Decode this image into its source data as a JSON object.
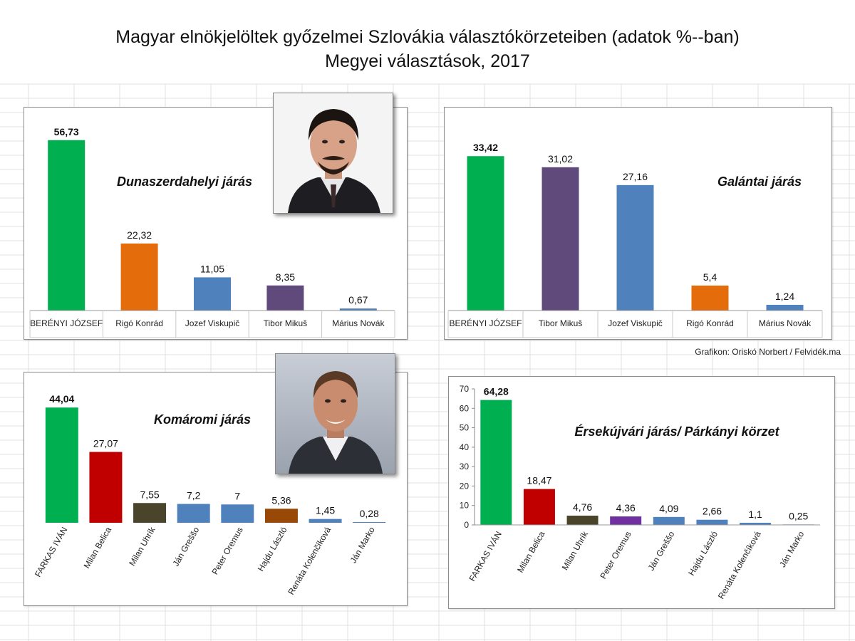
{
  "title": "Magyar elnökjelöltek győzelmei Szlovákia választókörzeteiben (adatok %--ban)",
  "subtitle": "Megyei választások, 2017",
  "credit": "Grafikon: Oriskó Norbert / Felvidék.ma",
  "chart_data": [
    {
      "type": "bar",
      "title": "Dunaszerdahelyi járás",
      "categories": [
        "BERÉNYI JÓZSEF",
        "Rigó Konrád",
        "Jozef Viskupič",
        "Tibor Mikuš",
        "Márius Novák"
      ],
      "values": [
        56.73,
        22.32,
        11.05,
        8.35,
        0.67
      ],
      "value_labels": [
        "56,73",
        "22,32",
        "11,05",
        "8,35",
        "0,67"
      ],
      "colors": [
        "#00b050",
        "#e46c0a",
        "#4f81bd",
        "#604a7b",
        "#4f81bd"
      ],
      "ylim": [
        0,
        60
      ],
      "grid": false
    },
    {
      "type": "bar",
      "title": "Galántai járás",
      "categories": [
        "BERÉNYI JÓZSEF",
        "Tibor Mikuš",
        "Jozef Viskupič",
        "Rigó Konrád",
        "Márius Novák"
      ],
      "values": [
        33.42,
        31.02,
        27.16,
        5.4,
        1.24
      ],
      "value_labels": [
        "33,42",
        "31,02",
        "27,16",
        "5,4",
        "1,24"
      ],
      "colors": [
        "#00b050",
        "#604a7b",
        "#4f81bd",
        "#e46c0a",
        "#4f81bd"
      ],
      "ylim": [
        0,
        35
      ],
      "grid": false
    },
    {
      "type": "bar",
      "title": "Komáromi járás",
      "categories": [
        "FARKAS IVÁN",
        "Milan Belica",
        "Milan Uhrík",
        "Ján Greššo",
        "Peter Oremus",
        "Hajdu László",
        "Renáta Kolenčíková",
        "Ján Marko"
      ],
      "values": [
        44.04,
        27.07,
        7.55,
        7.2,
        7,
        5.36,
        1.45,
        0.28
      ],
      "value_labels": [
        "44,04",
        "27,07",
        "7,55",
        "7,2",
        "7",
        "5,36",
        "1,45",
        "0,28"
      ],
      "colors": [
        "#00b050",
        "#c00000",
        "#4a452a",
        "#4f81bd",
        "#4f81bd",
        "#984807",
        "#4f81bd",
        "#4f81bd"
      ],
      "ylim": [
        0,
        46
      ],
      "grid": false
    },
    {
      "type": "bar",
      "title": "Érsekújvári járás/ Párkányi körzet",
      "categories": [
        "FARKAS IVÁN",
        "Milan Belica",
        "Milan Uhrík",
        "Peter Oremus",
        "Ján Greššo",
        "Hajdu László",
        "Renáta Kolenčíková",
        "Ján Marko"
      ],
      "values": [
        64.28,
        18.47,
        4.76,
        4.36,
        4.09,
        2.66,
        1.1,
        0.25
      ],
      "value_labels": [
        "64,28",
        "18,47",
        "4,76",
        "4,36",
        "4,09",
        "2,66",
        "1,1",
        "0,25"
      ],
      "colors": [
        "#00b050",
        "#c00000",
        "#4a452a",
        "#7030a0",
        "#4f81bd",
        "#4f81bd",
        "#4f81bd",
        "#4f81bd"
      ],
      "ylim": [
        0,
        70
      ],
      "yticks": [
        "0",
        "10",
        "20",
        "30",
        "40",
        "50",
        "60",
        "70"
      ],
      "grid": false
    }
  ]
}
